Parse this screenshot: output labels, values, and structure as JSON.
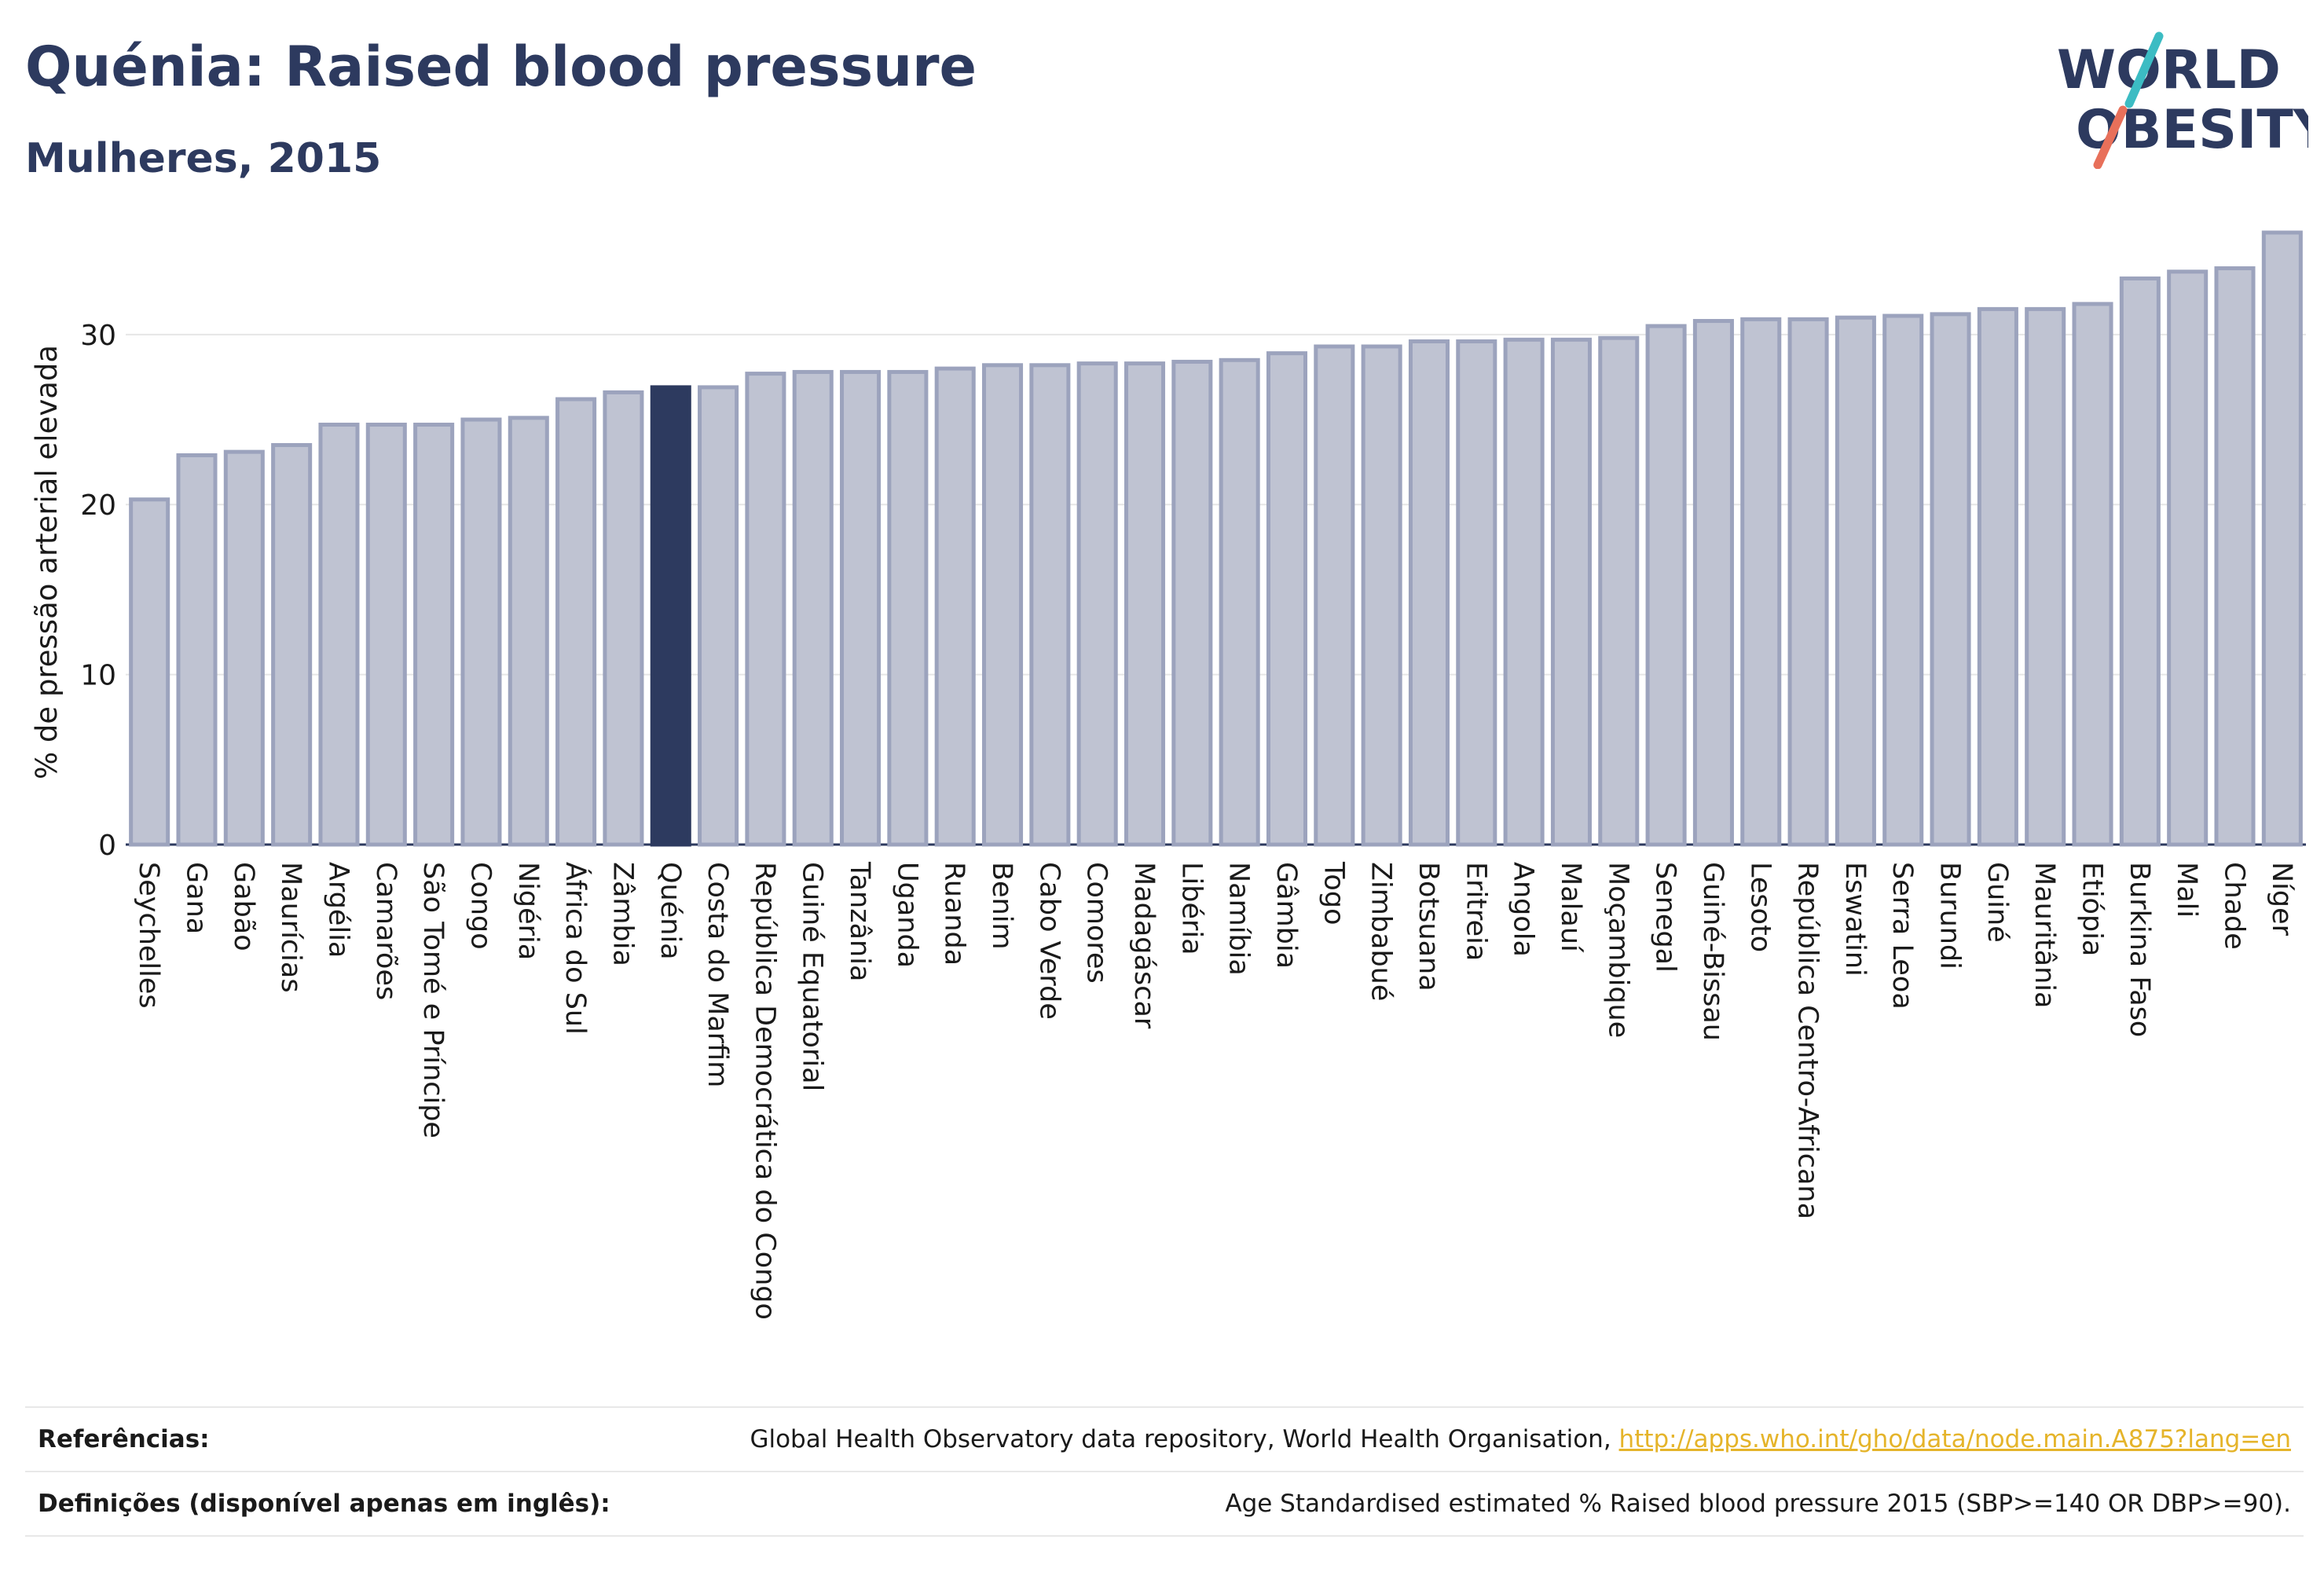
{
  "header": {
    "title": "Quénia: Raised blood pressure",
    "subtitle": "Mulheres, 2015"
  },
  "logo": {
    "line1": "WORLD",
    "line2": "OBESITY"
  },
  "chart_data": {
    "type": "bar",
    "ylabel": "% de pressão arterial elevada",
    "xlabel": "",
    "ylim": [
      0,
      36
    ],
    "yticks": [
      0,
      10,
      20,
      30
    ],
    "grid": true,
    "highlight": "Quénia",
    "colors": {
      "bar": "#bfc3d2",
      "bar_edge": "#9ca3bd",
      "highlight": "#2d3a5f"
    },
    "categories": [
      "Seychelles",
      "Gana",
      "Gabão",
      "Maurícias",
      "Argélia",
      "Camarões",
      "São Tomé e Príncipe",
      "Congo",
      "Nigéria",
      "África do Sul",
      "Zâmbia",
      "Quénia",
      "Costa do Marfim",
      "República Democrática do Congo",
      "Guiné Equatorial",
      "Tanzânia",
      "Uganda",
      "Ruanda",
      "Benim",
      "Cabo Verde",
      "Comores",
      "Madagáscar",
      "Libéria",
      "Namíbia",
      "Gâmbia",
      "Togo",
      "Zimbabué",
      "Botsuana",
      "Eritreia",
      "Angola",
      "Malauí",
      "Moçambique",
      "Senegal",
      "Guiné-Bissau",
      "Lesoto",
      "República Centro-Africana",
      "Eswatini",
      "Serra Leoa",
      "Burundi",
      "Guiné",
      "Mauritânia",
      "Etiópia",
      "Burkina Faso",
      "Mali",
      "Chade",
      "Níger"
    ],
    "values": [
      20.3,
      22.9,
      23.1,
      23.5,
      24.7,
      24.7,
      24.7,
      25.0,
      25.1,
      26.2,
      26.6,
      26.9,
      26.9,
      27.7,
      27.8,
      27.8,
      27.8,
      28.0,
      28.2,
      28.2,
      28.3,
      28.3,
      28.4,
      28.5,
      28.9,
      29.3,
      29.3,
      29.6,
      29.6,
      29.7,
      29.7,
      29.8,
      30.5,
      30.8,
      30.9,
      30.9,
      31.0,
      31.1,
      31.2,
      31.5,
      31.5,
      31.8,
      33.3,
      33.7,
      33.9,
      36.0
    ]
  },
  "footer": {
    "references_label": "Referências:",
    "references_text": "Global Health Observatory data repository, World Health Organisation, ",
    "references_link": "http://apps.who.int/gho/data/node.main.A875?lang=en",
    "definitions_label": "Definições (disponível apenas em inglês):",
    "definitions_text": "Age Standardised estimated % Raised blood pressure 2015 (SBP>=140 OR DBP>=90)."
  }
}
